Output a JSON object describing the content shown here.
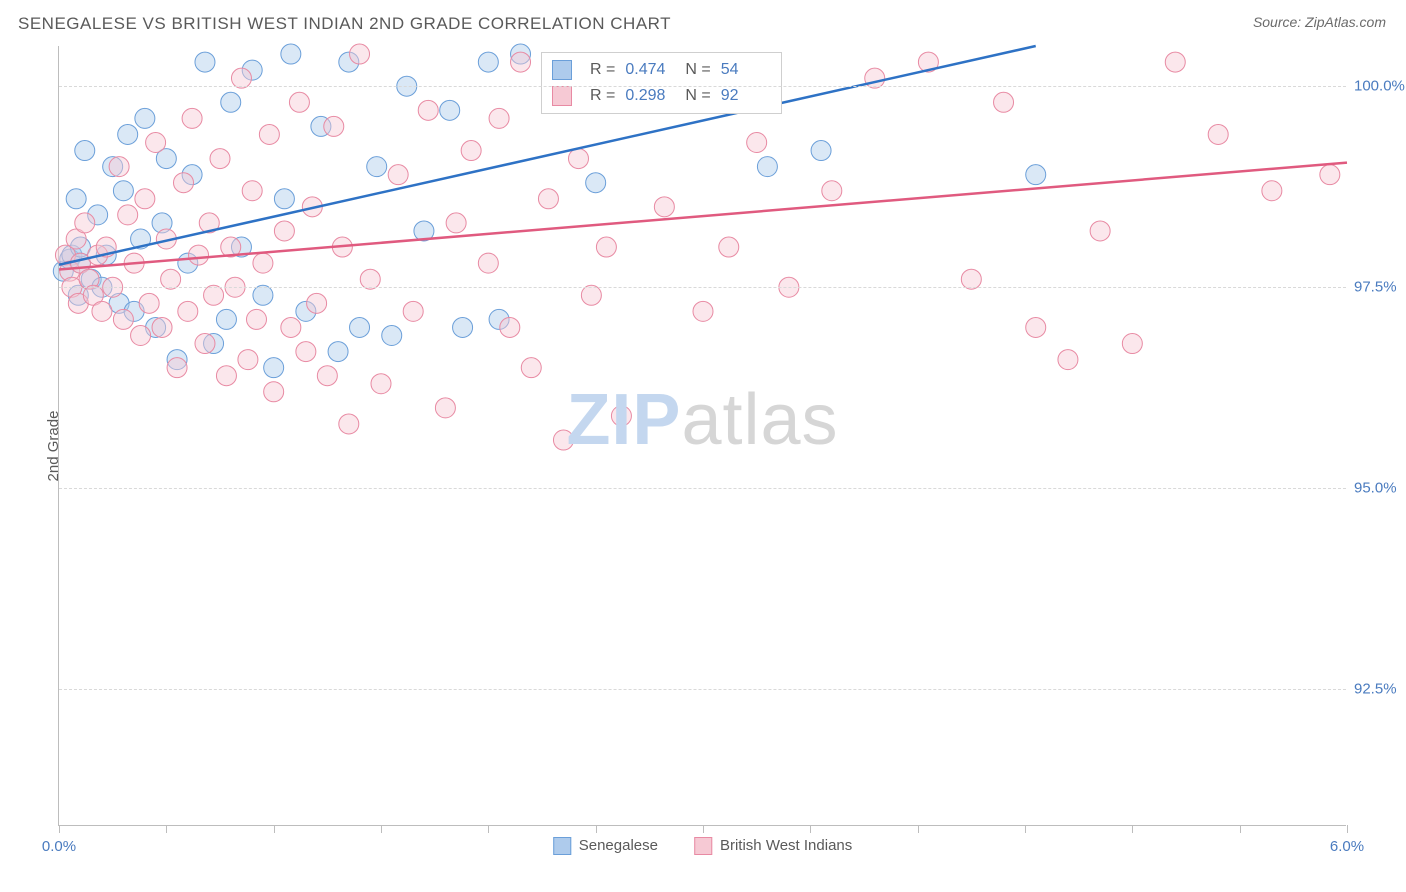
{
  "title": "SENEGALESE VS BRITISH WEST INDIAN 2ND GRADE CORRELATION CHART",
  "source": "Source: ZipAtlas.com",
  "ylabel": "2nd Grade",
  "watermark_left": "ZIP",
  "watermark_right": "atlas",
  "chart": {
    "type": "scatter",
    "xlim": [
      0.0,
      6.0
    ],
    "ylim": [
      90.8,
      100.5
    ],
    "x_ticks_minor": [
      0.0,
      0.5,
      1.0,
      1.5,
      2.0,
      2.5,
      3.0,
      3.5,
      4.0,
      4.5,
      5.0,
      5.5,
      6.0
    ],
    "x_tick_labels": [
      {
        "x": 0.0,
        "label": "0.0%"
      },
      {
        "x": 6.0,
        "label": "6.0%"
      }
    ],
    "y_gridlines": [
      92.5,
      95.0,
      97.5,
      100.0
    ],
    "y_tick_labels": [
      {
        "y": 92.5,
        "label": "92.5%"
      },
      {
        "y": 95.0,
        "label": "95.0%"
      },
      {
        "y": 97.5,
        "label": "97.5%"
      },
      {
        "y": 100.0,
        "label": "100.0%"
      }
    ],
    "background_color": "#ffffff",
    "grid_color": "#d9d9d9",
    "axis_color": "#bdbdbd",
    "marker_radius": 10,
    "marker_opacity": 0.45,
    "line_width": 2.5,
    "series": [
      {
        "name": "Senegalese",
        "color_fill": "#aecbec",
        "color_stroke": "#6b9fd9",
        "line_color": "#2e72c5",
        "reg_line": {
          "x1": 0.0,
          "y1": 97.78,
          "x2": 4.55,
          "y2": 100.5
        },
        "R": "0.474",
        "N": "54",
        "points": [
          [
            0.02,
            97.7
          ],
          [
            0.05,
            97.85
          ],
          [
            0.06,
            97.9
          ],
          [
            0.08,
            98.6
          ],
          [
            0.09,
            97.4
          ],
          [
            0.1,
            97.8
          ],
          [
            0.1,
            98.0
          ],
          [
            0.12,
            99.2
          ],
          [
            0.15,
            97.6
          ],
          [
            0.18,
            98.4
          ],
          [
            0.2,
            97.5
          ],
          [
            0.22,
            97.9
          ],
          [
            0.25,
            99.0
          ],
          [
            0.28,
            97.3
          ],
          [
            0.3,
            98.7
          ],
          [
            0.32,
            99.4
          ],
          [
            0.35,
            97.2
          ],
          [
            0.38,
            98.1
          ],
          [
            0.4,
            99.6
          ],
          [
            0.45,
            97.0
          ],
          [
            0.48,
            98.3
          ],
          [
            0.5,
            99.1
          ],
          [
            0.55,
            96.6
          ],
          [
            0.6,
            97.8
          ],
          [
            0.62,
            98.9
          ],
          [
            0.68,
            100.3
          ],
          [
            0.72,
            96.8
          ],
          [
            0.78,
            97.1
          ],
          [
            0.8,
            99.8
          ],
          [
            0.85,
            98.0
          ],
          [
            0.9,
            100.2
          ],
          [
            0.95,
            97.4
          ],
          [
            1.0,
            96.5
          ],
          [
            1.05,
            98.6
          ],
          [
            1.08,
            100.4
          ],
          [
            1.15,
            97.2
          ],
          [
            1.22,
            99.5
          ],
          [
            1.3,
            96.7
          ],
          [
            1.35,
            100.3
          ],
          [
            1.4,
            97.0
          ],
          [
            1.48,
            99.0
          ],
          [
            1.55,
            96.9
          ],
          [
            1.62,
            100.0
          ],
          [
            1.7,
            98.2
          ],
          [
            1.82,
            99.7
          ],
          [
            1.88,
            97.0
          ],
          [
            2.0,
            100.3
          ],
          [
            2.05,
            97.1
          ],
          [
            2.15,
            100.4
          ],
          [
            2.5,
            98.8
          ],
          [
            2.72,
            100.2
          ],
          [
            3.3,
            99.0
          ],
          [
            3.55,
            99.2
          ],
          [
            4.55,
            98.9
          ]
        ]
      },
      {
        "name": "British West Indians",
        "color_fill": "#f6c9d4",
        "color_stroke": "#e88aa3",
        "line_color": "#e05a7f",
        "reg_line": {
          "x1": 0.0,
          "y1": 97.72,
          "x2": 6.0,
          "y2": 99.05
        },
        "R": "0.298",
        "N": "92",
        "points": [
          [
            0.03,
            97.9
          ],
          [
            0.05,
            97.7
          ],
          [
            0.06,
            97.5
          ],
          [
            0.08,
            98.1
          ],
          [
            0.09,
            97.3
          ],
          [
            0.1,
            97.8
          ],
          [
            0.12,
            98.3
          ],
          [
            0.14,
            97.6
          ],
          [
            0.16,
            97.4
          ],
          [
            0.18,
            97.9
          ],
          [
            0.2,
            97.2
          ],
          [
            0.22,
            98.0
          ],
          [
            0.25,
            97.5
          ],
          [
            0.28,
            99.0
          ],
          [
            0.3,
            97.1
          ],
          [
            0.32,
            98.4
          ],
          [
            0.35,
            97.8
          ],
          [
            0.38,
            96.9
          ],
          [
            0.4,
            98.6
          ],
          [
            0.42,
            97.3
          ],
          [
            0.45,
            99.3
          ],
          [
            0.48,
            97.0
          ],
          [
            0.5,
            98.1
          ],
          [
            0.52,
            97.6
          ],
          [
            0.55,
            96.5
          ],
          [
            0.58,
            98.8
          ],
          [
            0.6,
            97.2
          ],
          [
            0.62,
            99.6
          ],
          [
            0.65,
            97.9
          ],
          [
            0.68,
            96.8
          ],
          [
            0.7,
            98.3
          ],
          [
            0.72,
            97.4
          ],
          [
            0.75,
            99.1
          ],
          [
            0.78,
            96.4
          ],
          [
            0.8,
            98.0
          ],
          [
            0.82,
            97.5
          ],
          [
            0.85,
            100.1
          ],
          [
            0.88,
            96.6
          ],
          [
            0.9,
            98.7
          ],
          [
            0.92,
            97.1
          ],
          [
            0.95,
            97.8
          ],
          [
            0.98,
            99.4
          ],
          [
            1.0,
            96.2
          ],
          [
            1.05,
            98.2
          ],
          [
            1.08,
            97.0
          ],
          [
            1.12,
            99.8
          ],
          [
            1.15,
            96.7
          ],
          [
            1.18,
            98.5
          ],
          [
            1.2,
            97.3
          ],
          [
            1.25,
            96.4
          ],
          [
            1.28,
            99.5
          ],
          [
            1.32,
            98.0
          ],
          [
            1.35,
            95.8
          ],
          [
            1.4,
            100.4
          ],
          [
            1.45,
            97.6
          ],
          [
            1.5,
            96.3
          ],
          [
            1.58,
            98.9
          ],
          [
            1.65,
            97.2
          ],
          [
            1.72,
            99.7
          ],
          [
            1.8,
            96.0
          ],
          [
            1.85,
            98.3
          ],
          [
            1.92,
            99.2
          ],
          [
            2.0,
            97.8
          ],
          [
            2.05,
            99.6
          ],
          [
            2.1,
            97.0
          ],
          [
            2.15,
            100.3
          ],
          [
            2.2,
            96.5
          ],
          [
            2.28,
            98.6
          ],
          [
            2.35,
            95.6
          ],
          [
            2.42,
            99.1
          ],
          [
            2.48,
            97.4
          ],
          [
            2.55,
            98.0
          ],
          [
            2.62,
            95.9
          ],
          [
            2.7,
            100.2
          ],
          [
            2.82,
            98.5
          ],
          [
            3.0,
            97.2
          ],
          [
            3.12,
            98.0
          ],
          [
            3.25,
            99.3
          ],
          [
            3.4,
            97.5
          ],
          [
            3.6,
            98.7
          ],
          [
            3.8,
            100.1
          ],
          [
            4.05,
            100.3
          ],
          [
            4.25,
            97.6
          ],
          [
            4.4,
            99.8
          ],
          [
            4.55,
            97.0
          ],
          [
            4.7,
            96.6
          ],
          [
            4.85,
            98.2
          ],
          [
            5.0,
            96.8
          ],
          [
            5.2,
            100.3
          ],
          [
            5.4,
            99.4
          ],
          [
            5.65,
            98.7
          ],
          [
            5.92,
            98.9
          ]
        ]
      }
    ]
  },
  "legend_bottom": [
    {
      "label": "Senegalese",
      "fill": "#aecbec",
      "stroke": "#6b9fd9"
    },
    {
      "label": "British West Indians",
      "fill": "#f6c9d4",
      "stroke": "#e88aa3"
    }
  ],
  "stat_box": {
    "rows": [
      {
        "fill": "#aecbec",
        "stroke": "#6b9fd9",
        "R_label": "R =",
        "R": "0.474",
        "N_label": "N =",
        "N": "54"
      },
      {
        "fill": "#f6c9d4",
        "stroke": "#e88aa3",
        "R_label": "R =",
        "R": "0.298",
        "N_label": "N =",
        "N": "92"
      }
    ]
  }
}
